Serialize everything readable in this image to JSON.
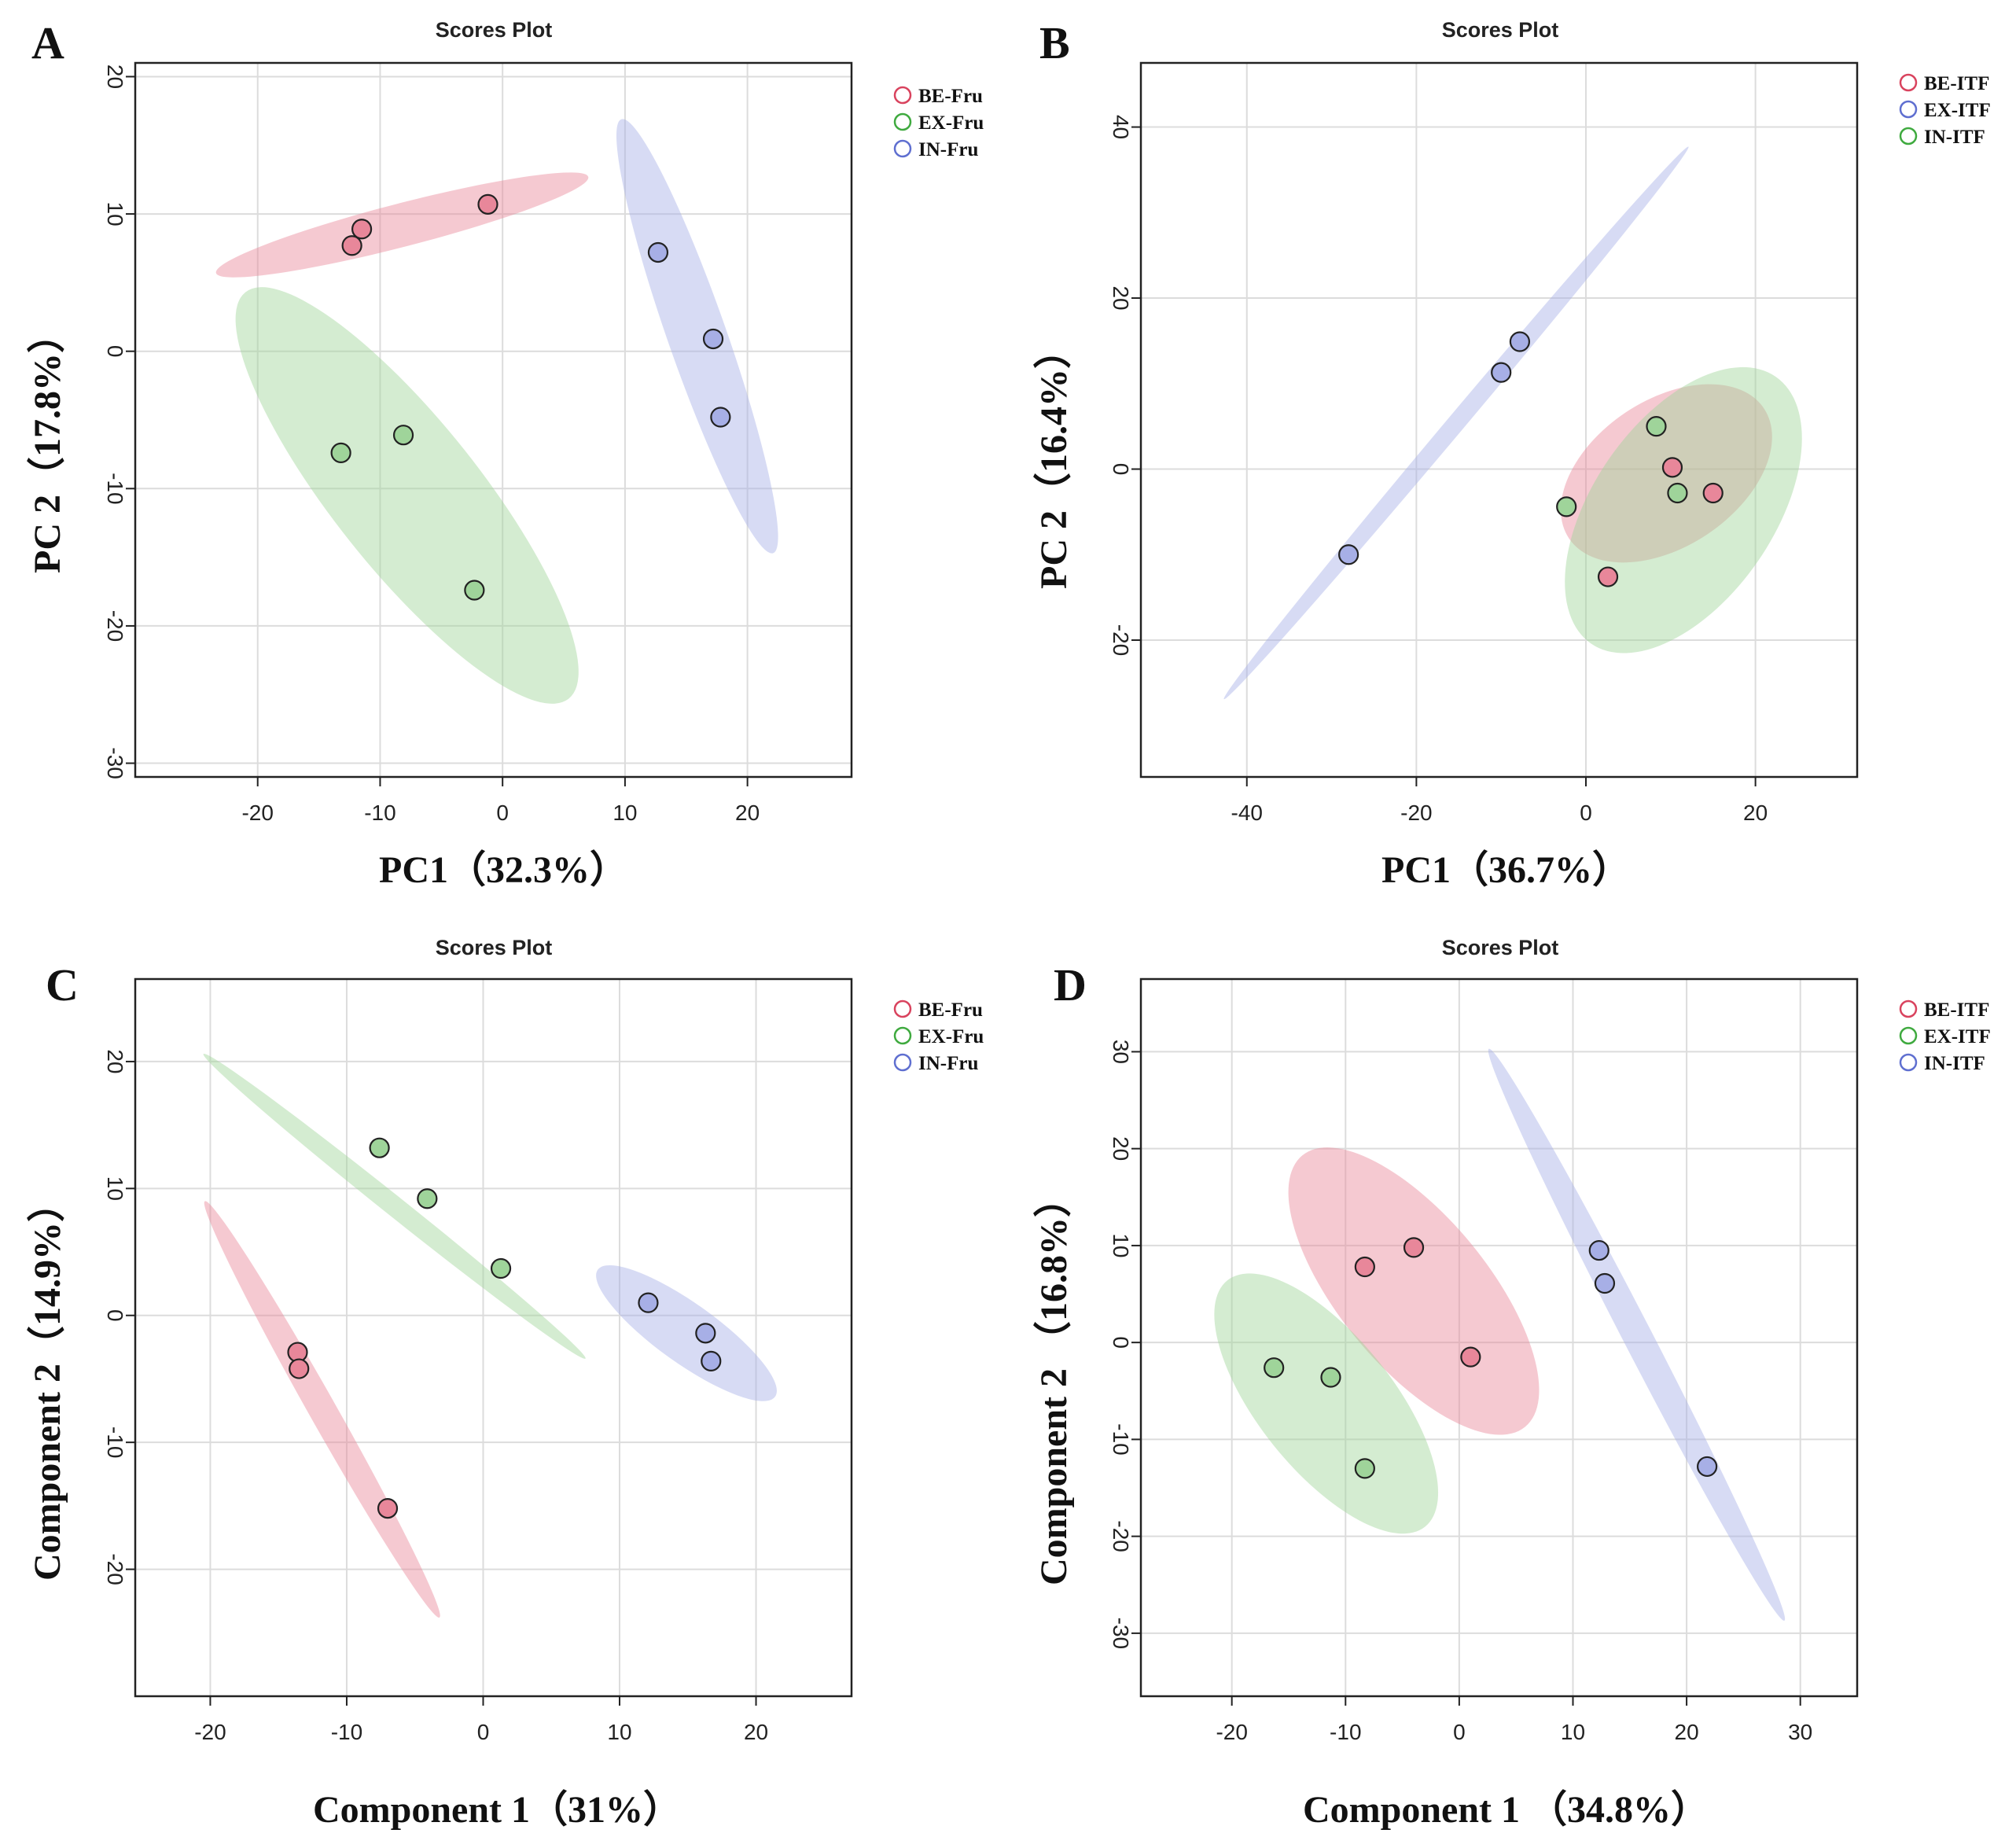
{
  "colors": {
    "red": "#e8879a",
    "green": "#9fd49a",
    "blue": "#a7afe6",
    "red_ring": "#d9435e",
    "green_ring": "#3faa3f",
    "blue_ring": "#5f6fd0",
    "grid": "#dcdcdc"
  },
  "chart_data": [
    {
      "type": "scatter",
      "panel": "A",
      "title": "Scores Plot",
      "xlabel": "PC1（32.3%）",
      "ylabel": "PC 2（17.8%）",
      "xlim": [
        -30,
        28.5
      ],
      "ylim": [
        -31,
        21
      ],
      "xticks": [
        -20,
        -10,
        0,
        10,
        20
      ],
      "yticks": [
        -30,
        -20,
        -10,
        0,
        10,
        20
      ],
      "legend_position": "top-right",
      "series": [
        {
          "name": "BE-Fru",
          "color": "red",
          "points": [
            [
              -12.3,
              7.7
            ],
            [
              -11.5,
              8.9
            ],
            [
              -1.2,
              10.7
            ]
          ],
          "ellipse": {
            "center": [
              -8.2,
              9.2
            ],
            "half_axis_1": [
              15.2,
              3.5
            ],
            "half_axis_2": [
              -0.35,
              1.55
            ]
          }
        },
        {
          "name": "EX-Fru",
          "color": "green",
          "points": [
            [
              -13.2,
              -7.4
            ],
            [
              -8.1,
              -6.1
            ],
            [
              -2.3,
              -17.4
            ]
          ],
          "ellipse": {
            "center": [
              -7.8,
              -10.5
            ],
            "half_axis_1": [
              13.2,
              -14.8
            ],
            "half_axis_2": [
              -4.2,
              -3.8
            ]
          }
        },
        {
          "name": "IN-Fru",
          "color": "blue",
          "points": [
            [
              12.7,
              7.2
            ],
            [
              17.2,
              0.9
            ],
            [
              17.8,
              -4.8
            ]
          ],
          "ellipse": {
            "center": [
              15.9,
              1.1
            ],
            "half_axis_1": [
              6.2,
              -15.8
            ],
            "half_axis_2": [
              -2.2,
              -0.86
            ]
          }
        }
      ]
    },
    {
      "type": "scatter",
      "panel": "B",
      "title": "Scores Plot",
      "xlabel": "PC1（36.7%）",
      "ylabel": "PC 2（16.4%）",
      "xlim": [
        -52.5,
        32
      ],
      "ylim": [
        -36,
        47.5
      ],
      "xticks": [
        -40,
        -20,
        0,
        20
      ],
      "yticks": [
        -20,
        0,
        20,
        40
      ],
      "legend_position": "top-right",
      "series": [
        {
          "name": "BE-ITF",
          "color": "red",
          "points": [
            [
              10.2,
              0.2
            ],
            [
              15.0,
              -2.8
            ],
            [
              2.6,
              -12.6
            ]
          ],
          "ellipse": {
            "center": [
              9.5,
              -0.5
            ],
            "half_axis_1": [
              11.5,
              7.6
            ],
            "half_axis_2": [
              -5.0,
              7.0
            ]
          }
        },
        {
          "name": "EX-ITF",
          "color": "blue",
          "points": [
            [
              -10.0,
              11.3
            ],
            [
              -7.8,
              14.9
            ],
            [
              -28.0,
              -10.0
            ]
          ],
          "ellipse": {
            "center": [
              -15.3,
              5.4
            ],
            "half_axis_1": [
              27.4,
              32.3
            ],
            "half_axis_2": [
              -0.8,
              0.68
            ]
          }
        },
        {
          "name": "IN-ITF",
          "color": "green",
          "points": [
            [
              8.3,
              5.0
            ],
            [
              10.8,
              -2.8
            ],
            [
              -2.3,
              -4.4
            ]
          ],
          "ellipse": {
            "center": [
              11.5,
              -4.8
            ],
            "half_axis_1": [
              10.9,
              15.6
            ],
            "half_axis_2": [
              -8.7,
              6.1
            ]
          }
        }
      ]
    },
    {
      "type": "scatter",
      "panel": "C",
      "title": "Scores Plot",
      "xlabel": "Component 1（31%）",
      "ylabel": "Component 2（14.9%）",
      "xlim": [
        -25.5,
        27
      ],
      "ylim": [
        -30,
        26.5
      ],
      "xticks": [
        -20,
        -10,
        0,
        10,
        20
      ],
      "yticks": [
        -20,
        -10,
        0,
        10,
        20
      ],
      "legend_position": "top-right",
      "series": [
        {
          "name": "BE-Fru",
          "color": "red",
          "points": [
            [
              -13.6,
              -2.9
            ],
            [
              -13.5,
              -4.2
            ],
            [
              -7.0,
              -15.2
            ]
          ],
          "ellipse": {
            "center": [
              -11.8,
              -7.4
            ],
            "half_axis_1": [
              8.6,
              -16.4
            ],
            "half_axis_2": [
              -0.9,
              -0.5
            ]
          }
        },
        {
          "name": "EX-Fru",
          "color": "green",
          "points": [
            [
              -7.6,
              13.2
            ],
            [
              -4.1,
              9.2
            ],
            [
              1.3,
              3.7
            ]
          ],
          "ellipse": {
            "center": [
              -6.5,
              8.6
            ],
            "half_axis_1": [
              14.0,
              -12.0
            ],
            "half_axis_2": [
              0.5,
              0.58
            ]
          }
        },
        {
          "name": "IN-Fru",
          "color": "blue",
          "points": [
            [
              12.1,
              1.0
            ],
            [
              16.3,
              -1.4
            ],
            [
              16.7,
              -3.6
            ]
          ],
          "ellipse": {
            "center": [
              14.9,
              -1.4
            ],
            "half_axis_1": [
              6.5,
              -5.0
            ],
            "half_axis_2": [
              -1.4,
              -1.8
            ]
          }
        }
      ]
    },
    {
      "type": "scatter",
      "panel": "D",
      "title": "Scores Plot",
      "xlabel": "Component 1 （34.8%）",
      "ylabel": "Component 2 （16.8%）",
      "xlim": [
        -28,
        35
      ],
      "ylim": [
        -36.5,
        37.5
      ],
      "xticks": [
        -20,
        -10,
        0,
        10,
        20,
        30
      ],
      "yticks": [
        -30,
        -20,
        -10,
        0,
        10,
        20,
        30
      ],
      "legend_position": "top-right",
      "series": [
        {
          "name": "BE-ITF",
          "color": "red",
          "points": [
            [
              -8.3,
              7.8
            ],
            [
              -4.0,
              9.8
            ],
            [
              1.0,
              -1.5
            ]
          ],
          "ellipse": {
            "center": [
              -4.0,
              5.3
            ],
            "half_axis_1": [
              9.8,
              -14.0
            ],
            "half_axis_2": [
              -5.3,
              -4.5
            ]
          }
        },
        {
          "name": "EX-ITF",
          "color": "green",
          "points": [
            [
              -16.3,
              -2.6
            ],
            [
              -11.3,
              -3.6
            ],
            [
              -8.3,
              -13.0
            ]
          ],
          "ellipse": {
            "center": [
              -11.7,
              -6.3
            ],
            "half_axis_1": [
              8.7,
              -12.7
            ],
            "half_axis_2": [
              -5.1,
              -3.5
            ]
          }
        },
        {
          "name": "IN-ITF",
          "color": "blue",
          "points": [
            [
              12.3,
              9.5
            ],
            [
              12.8,
              6.1
            ],
            [
              21.8,
              -12.8
            ]
          ],
          "ellipse": {
            "center": [
              15.6,
              0.8
            ],
            "half_axis_1": [
              13.0,
              -29.5
            ],
            "half_axis_2": [
              -1.2,
              -0.53
            ]
          }
        }
      ]
    }
  ]
}
